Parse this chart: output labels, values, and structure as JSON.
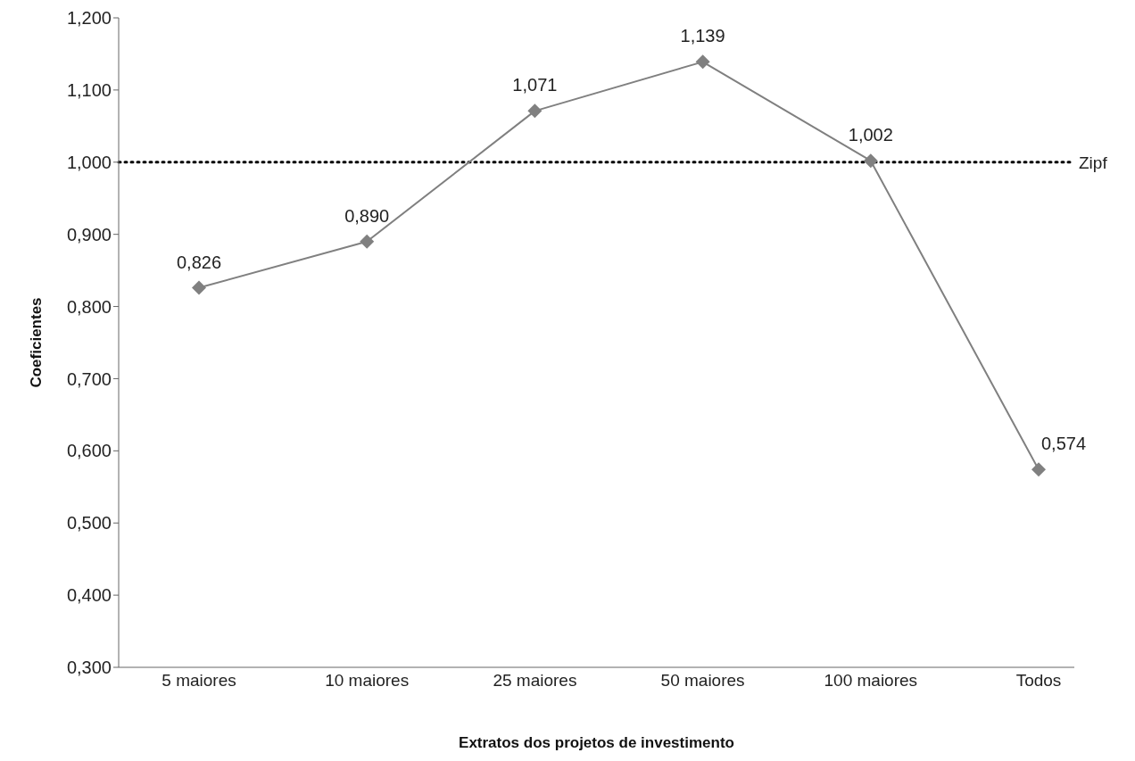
{
  "chart_data": {
    "type": "line",
    "xlabel": "Extratos dos projetos de investimento",
    "ylabel": "Coeficientes",
    "categories": [
      "5 maiores",
      "10 maiores",
      "25 maiores",
      "50 maiores",
      "100 maiores",
      "Todos"
    ],
    "series": [
      {
        "color": "#808080",
        "values": [
          0.826,
          0.89,
          1.071,
          1.139,
          1.002,
          0.574
        ],
        "value_labels": [
          "0,826",
          "0,890",
          "1,071",
          "1,139",
          "1,002",
          "0,574"
        ]
      }
    ],
    "ylim": [
      0.3,
      1.2
    ],
    "yticks": [
      {
        "value": 0.3,
        "label": "0,300"
      },
      {
        "value": 0.4,
        "label": "0,400"
      },
      {
        "value": 0.5,
        "label": "0,500"
      },
      {
        "value": 0.6,
        "label": "0,600"
      },
      {
        "value": 0.7,
        "label": "0,700"
      },
      {
        "value": 0.8,
        "label": "0,800"
      },
      {
        "value": 0.9,
        "label": "0,900"
      },
      {
        "value": 1.0,
        "label": "1,000"
      },
      {
        "value": 1.1,
        "label": "1,100"
      },
      {
        "value": 1.2,
        "label": "1,200"
      }
    ],
    "ref_lines": [
      {
        "axis": "y",
        "value": 1.0,
        "label": "Zipf",
        "color": "#000000",
        "line_style": "dotted"
      }
    ],
    "marker": "diamond",
    "line_style": "solid",
    "grid": false,
    "legend": false
  }
}
